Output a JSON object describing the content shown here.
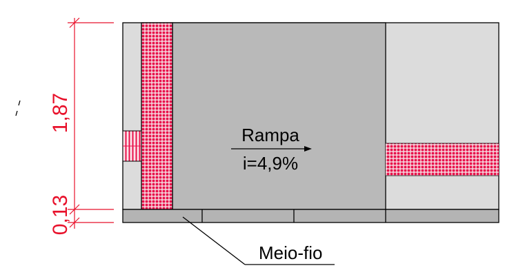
{
  "drawing": {
    "ramp_label": "Rampa",
    "slope_label": "i=4,9%",
    "curb_label": "Meio-fio",
    "dim_upper": "1,87",
    "dim_lower": "0,13"
  },
  "colors": {
    "dimension": "#e8102a",
    "tactile": "#e8104a",
    "ramp_fill": "#b9b9b9",
    "sidewalk_fill": "#dcdcdc",
    "curb_fill": "#b4b4b4",
    "outline": "#000000"
  }
}
